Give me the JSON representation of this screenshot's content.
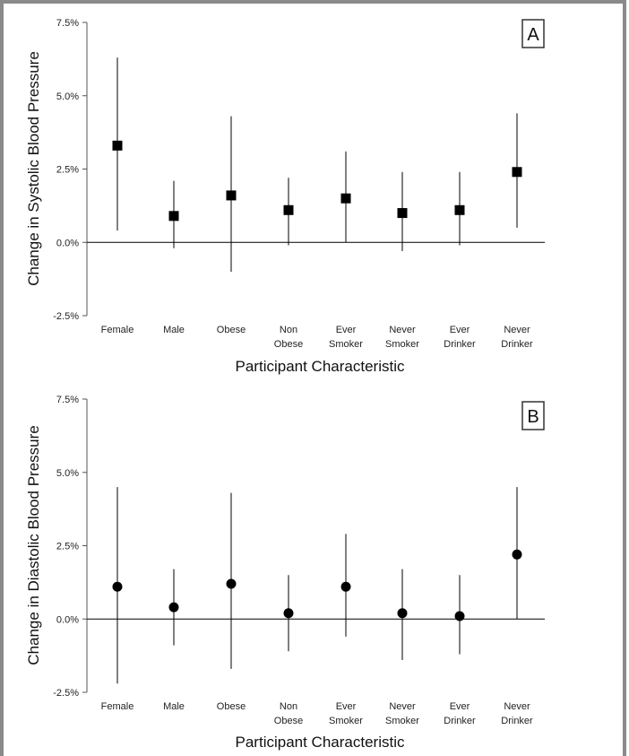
{
  "chart_data": [
    {
      "type": "scatter",
      "panel_label": "A",
      "marker": "square",
      "ylabel": "Change in Systolic Blood Pressure",
      "xlabel": "Participant Characteristic",
      "categories": [
        [
          "Female"
        ],
        [
          "Male"
        ],
        [
          "Obese"
        ],
        [
          "Non",
          "Obese"
        ],
        [
          "Ever",
          "Smoker"
        ],
        [
          "Never",
          "Smoker"
        ],
        [
          "Ever",
          "Drinker"
        ],
        [
          "Never",
          "Drinker"
        ]
      ],
      "values": [
        3.3,
        0.9,
        1.6,
        1.1,
        1.5,
        1.0,
        1.1,
        2.4
      ],
      "ci_lower": [
        0.4,
        -0.2,
        -1.0,
        -0.1,
        0.0,
        -0.3,
        -0.1,
        0.5
      ],
      "ci_upper": [
        6.3,
        2.1,
        4.3,
        2.2,
        3.1,
        2.4,
        2.4,
        4.4
      ],
      "ylim": [
        -2.5,
        7.5
      ],
      "yticks": [
        -2.5,
        0.0,
        2.5,
        5.0,
        7.5
      ],
      "ytick_labels": [
        "-2.5%",
        "0.0%",
        "2.5%",
        "5.0%",
        "7.5%"
      ],
      "grid": false
    },
    {
      "type": "scatter",
      "panel_label": "B",
      "marker": "circle",
      "ylabel": "Change in Diastolic Blood Pressure",
      "xlabel": "Participant Characteristic",
      "categories": [
        [
          "Female"
        ],
        [
          "Male"
        ],
        [
          "Obese"
        ],
        [
          "Non",
          "Obese"
        ],
        [
          "Ever",
          "Smoker"
        ],
        [
          "Never",
          "Smoker"
        ],
        [
          "Ever",
          "Drinker"
        ],
        [
          "Never",
          "Drinker"
        ]
      ],
      "values": [
        1.1,
        0.4,
        1.2,
        0.2,
        1.1,
        0.2,
        0.1,
        2.2
      ],
      "ci_lower": [
        -2.2,
        -0.9,
        -1.7,
        -1.1,
        -0.6,
        -1.4,
        -1.2,
        0.0
      ],
      "ci_upper": [
        4.5,
        1.7,
        4.3,
        1.5,
        2.9,
        1.7,
        1.5,
        4.5
      ],
      "ylim": [
        -2.5,
        7.5
      ],
      "yticks": [
        -2.5,
        0.0,
        2.5,
        5.0,
        7.5
      ],
      "ytick_labels": [
        "-2.5%",
        "0.0%",
        "2.5%",
        "5.0%",
        "7.5%"
      ],
      "grid": false
    }
  ]
}
